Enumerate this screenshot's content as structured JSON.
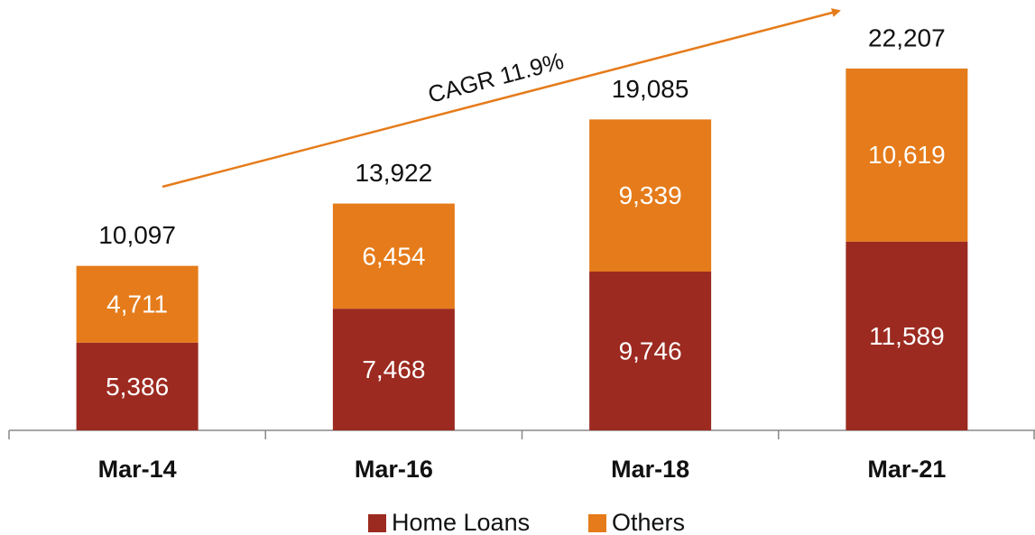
{
  "chart_data": {
    "type": "stacked_bar",
    "categories": [
      "Mar-14",
      "Mar-16",
      "Mar-18",
      "Mar-21"
    ],
    "series": [
      {
        "name": "Home Loans",
        "color": "#9c2a20",
        "values": [
          5386,
          7468,
          9746,
          11589
        ],
        "value_labels": [
          "5,386",
          "7,468",
          "9,746",
          "11,589"
        ]
      },
      {
        "name": "Others",
        "color": "#e57b1a",
        "values": [
          4711,
          6454,
          9339,
          10619
        ],
        "value_labels": [
          "4,711",
          "6,454",
          "9,339",
          "10,619"
        ]
      }
    ],
    "totals": [
      10097,
      13922,
      19085,
      22207
    ],
    "total_labels": [
      "10,097",
      "13,922",
      "19,085",
      "22,207"
    ],
    "annotation": "CAGR 11.9%",
    "legend": "bottom"
  }
}
